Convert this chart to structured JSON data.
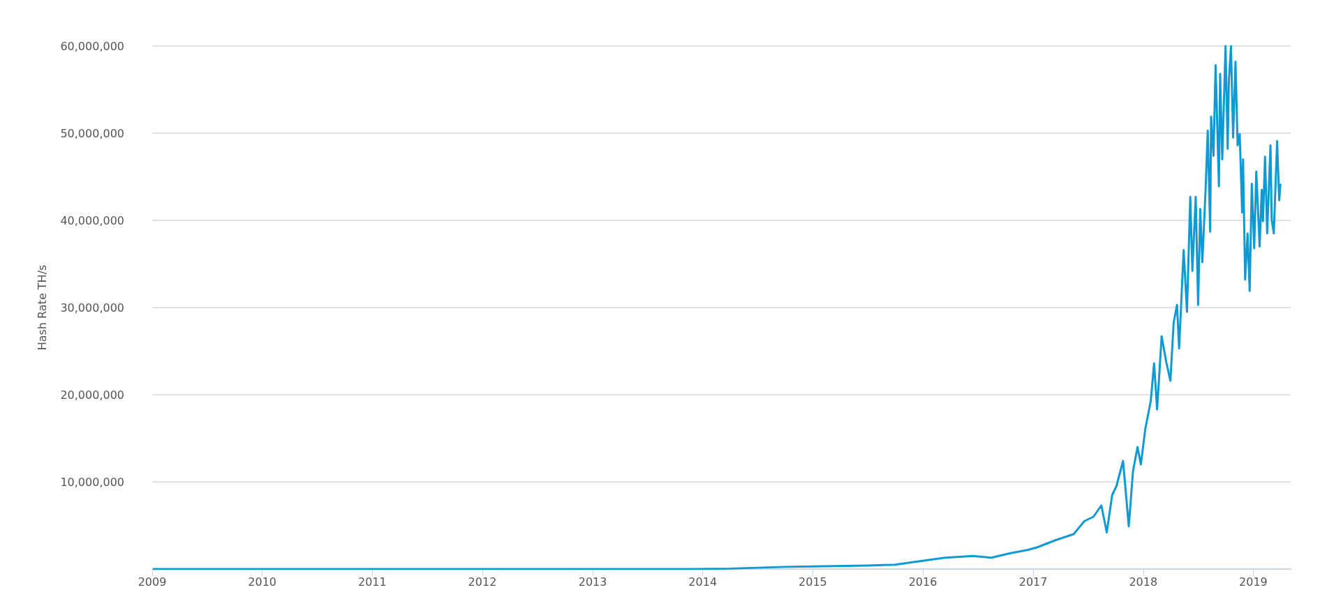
{
  "chart_data": {
    "type": "line",
    "ylabel": "Hash Rate TH/s",
    "x": [
      "2009-01-03",
      "2010-01-01",
      "2011-01-01",
      "2012-01-01",
      "2013-01-01",
      "2013-07-01",
      "2013-12-01",
      "2014-04-01",
      "2014-07-01",
      "2014-10-01",
      "2015-01-01",
      "2015-07-01",
      "2015-10-01",
      "2015-12-01",
      "2016-02-01",
      "2016-03-15",
      "2016-06-15",
      "2016-08-15",
      "2016-10-15",
      "2016-12-15",
      "2017-01-15",
      "2017-03-15",
      "2017-05-15",
      "2017-06-20",
      "2017-07-20",
      "2017-08-15",
      "2017-09-02",
      "2017-09-20",
      "2017-10-04",
      "2017-10-26",
      "2017-11-14",
      "2017-11-28",
      "2017-12-13",
      "2017-12-24",
      "2018-01-08",
      "2018-01-26",
      "2018-02-06",
      "2018-02-16",
      "2018-03-03",
      "2018-03-18",
      "2018-04-01",
      "2018-04-12",
      "2018-04-23",
      "2018-04-30",
      "2018-05-15",
      "2018-05-26",
      "2018-06-06",
      "2018-06-13",
      "2018-06-24",
      "2018-07-02",
      "2018-07-09",
      "2018-07-16",
      "2018-07-27",
      "2018-08-03",
      "2018-08-11",
      "2018-08-14",
      "2018-08-22",
      "2018-08-29",
      "2018-09-09",
      "2018-09-13",
      "2018-09-20",
      "2018-10-01",
      "2018-10-08",
      "2018-10-12",
      "2018-10-19",
      "2018-10-26",
      "2018-11-03",
      "2018-11-10",
      "2018-11-17",
      "2018-11-25",
      "2018-11-28",
      "2018-12-05",
      "2018-12-13",
      "2018-12-20",
      "2018-12-27",
      "2019-01-04",
      "2019-01-11",
      "2019-01-22",
      "2019-01-29",
      "2019-02-02",
      "2019-02-09",
      "2019-02-16",
      "2019-02-27",
      "2019-03-03",
      "2019-03-10",
      "2019-03-21",
      "2019-03-28",
      "2019-04-01"
    ],
    "series": [
      {
        "color": "#0e9ad4",
        "values": [
          0,
          0,
          0,
          0,
          0,
          0,
          10000,
          50000,
          150000,
          250000,
          300000,
          400000,
          500000,
          800000,
          1100000,
          1300000,
          1500000,
          1300000,
          1800000,
          2200000,
          2500000,
          3300000,
          4000000,
          5500000,
          6000000,
          7300000,
          4200000,
          8500000,
          9500000,
          12400000,
          4900000,
          11200000,
          14000000,
          12000000,
          16100000,
          19300000,
          23600000,
          18300000,
          26700000,
          23800000,
          21600000,
          28300000,
          30300000,
          25300000,
          36600000,
          29500000,
          42700000,
          34200000,
          42700000,
          30300000,
          41300000,
          35200000,
          43700000,
          50300000,
          38700000,
          51900000,
          47400000,
          57800000,
          43900000,
          56800000,
          47000000,
          60000000,
          48200000,
          56000000,
          60000000,
          49500000,
          58200000,
          48600000,
          49900000,
          40900000,
          47000000,
          33200000,
          38500000,
          31900000,
          44200000,
          36800000,
          45600000,
          37000000,
          43500000,
          39900000,
          47300000,
          38500000,
          48600000,
          40100000,
          38500000,
          49100000,
          42300000,
          44200000
        ]
      }
    ],
    "xlim": [
      "2009-01-01",
      "2019-05-05"
    ],
    "xticks": [
      "2009",
      "2010",
      "2011",
      "2012",
      "2013",
      "2014",
      "2015",
      "2016",
      "2017",
      "2018",
      "2019"
    ],
    "ylim": [
      0,
      60000000
    ],
    "yticks": [
      {
        "value": 0,
        "label": null
      },
      {
        "value": 10000000,
        "label": "10,000,000"
      },
      {
        "value": 20000000,
        "label": "20,000,000"
      },
      {
        "value": 30000000,
        "label": "30,000,000"
      },
      {
        "value": 40000000,
        "label": "40,000,000"
      },
      {
        "value": 50000000,
        "label": "50,000,000"
      },
      {
        "value": 60000000,
        "label": "60,000,000"
      }
    ],
    "grid": "y",
    "marker": "none",
    "line_style": "solid"
  }
}
